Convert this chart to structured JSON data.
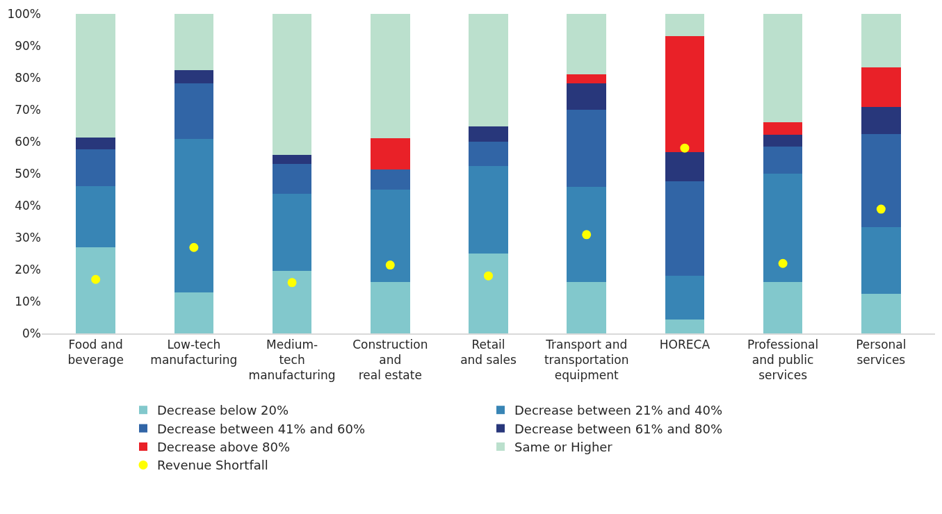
{
  "chart_data": {
    "type": "bar",
    "stacked": true,
    "categories": [
      "Food and\nbeverage",
      "Low-tech\nmanufacturing",
      "Medium-\ntech\nmanufacturing",
      "Construction\nand\nreal estate",
      "Retail\nand sales",
      "Transport and\ntransportation\nequipment",
      "HORECA",
      "Professional\nand public\nservices",
      "Personal\nservices"
    ],
    "series": [
      {
        "name": "Decrease below 20%",
        "color": "#82c8cc",
        "values": [
          26.9,
          12.9,
          19.6,
          16.0,
          24.9,
          16.1,
          4.4,
          16.0,
          12.5
        ]
      },
      {
        "name": "Decrease between 21% and 40%",
        "color": "#3885b5",
        "values": [
          19.2,
          47.9,
          24.2,
          29.1,
          27.5,
          29.8,
          13.7,
          33.9,
          20.7
        ]
      },
      {
        "name": "Decrease between 41% and 60%",
        "color": "#3165a6",
        "values": [
          11.5,
          17.4,
          9.2,
          6.3,
          7.6,
          24.2,
          29.6,
          8.5,
          29.1
        ]
      },
      {
        "name": "Decrease between 61% and 80%",
        "color": "#28377b",
        "values": [
          3.8,
          4.3,
          2.9,
          0,
          4.8,
          8.2,
          9.0,
          3.8,
          8.5
        ]
      },
      {
        "name": "Decrease above 80%",
        "color": "#e92128",
        "values": [
          0,
          0,
          0,
          9.7,
          0,
          2.7,
          36.4,
          3.8,
          12.4
        ]
      },
      {
        "name": "Same or Higher",
        "color": "#bbe0cd",
        "values": [
          38.6,
          17.5,
          44.1,
          38.9,
          35.2,
          19.0,
          6.9,
          34.0,
          16.8
        ]
      },
      {
        "name": "Revenue Shortfall",
        "type": "scatter",
        "marker": "circle",
        "color": "#ffff00",
        "x": [
          "Food and\nbeverage",
          "Low-tech\nmanufacturing",
          "Medium-\ntech\nmanufacturing",
          "Construction\nand\nreal estate",
          "Retail\nand sales",
          "Transport and\ntransportation\nequipment",
          "HORECA",
          "Professional\nand public\nservices",
          "Personal\nservices"
        ],
        "values": [
          16.9,
          26.9,
          15.9,
          21.4,
          18.0,
          30.9,
          58.0,
          21.9,
          38.9
        ]
      }
    ],
    "ylim": [
      0,
      100
    ],
    "yticks": [
      {
        "value": 0,
        "label": "0%"
      },
      {
        "value": 10,
        "label": "10%"
      },
      {
        "value": 20,
        "label": "20%"
      },
      {
        "value": 30,
        "label": "30%"
      },
      {
        "value": 40,
        "label": "40%"
      },
      {
        "value": 50,
        "label": "50%"
      },
      {
        "value": 60,
        "label": "60%"
      },
      {
        "value": 70,
        "label": "70%"
      },
      {
        "value": 80,
        "label": "80%"
      },
      {
        "value": 90,
        "label": "90%"
      },
      {
        "value": 100,
        "label": "100%"
      }
    ],
    "legend": "bottom"
  }
}
